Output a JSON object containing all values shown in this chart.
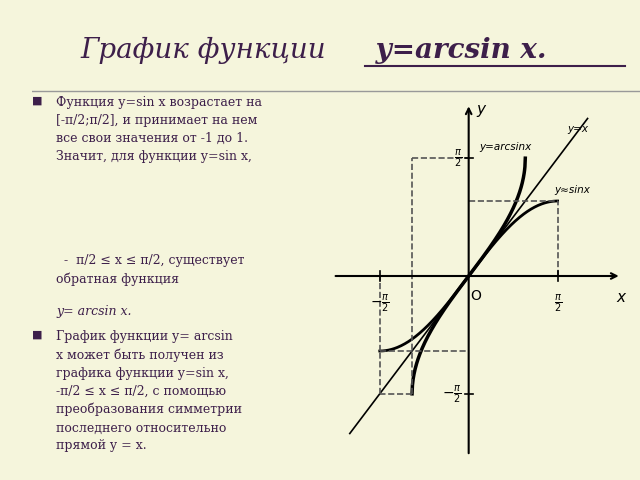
{
  "title_main": "График функции",
  "title_formula": " y=arcsin x.",
  "bg_color": "#f5f5dc",
  "left_panel_color": "#c8c87a",
  "text_color": "#3d1f4a",
  "graph_bg": "#ffffff",
  "pi_half": 1.5707963267948966,
  "xlim": [
    -2.4,
    2.8
  ],
  "ylim": [
    -2.4,
    2.4
  ],
  "line_color": "#000000",
  "line_width": 2.0,
  "dashed_color": "#555555",
  "dashed_lw": 1.2
}
